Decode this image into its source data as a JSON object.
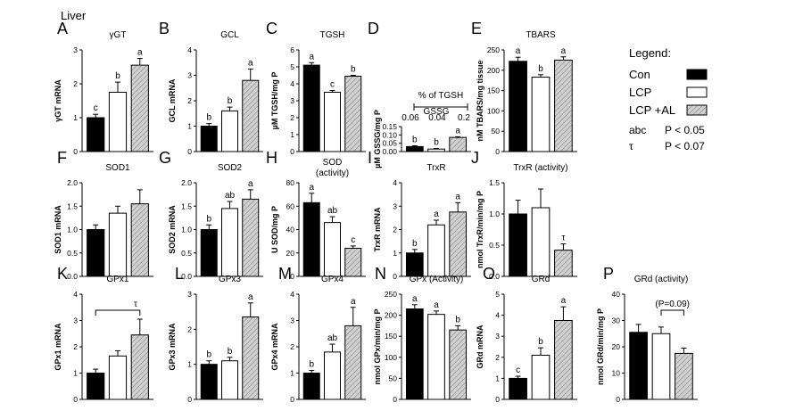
{
  "figure_title": "Liver",
  "colors": {
    "Con": "#000000",
    "LCP": "#ffffff",
    "LCP +AL": "#d0d0d0"
  },
  "legend": {
    "title": "Legend:",
    "entries": [
      "Con",
      "LCP",
      "LCP +AL"
    ],
    "sig": [
      {
        "symbol": "abc",
        "text": "P < 0.05"
      },
      {
        "symbol": "τ",
        "text": "P < 0.07"
      }
    ]
  },
  "chart_data": [
    {
      "id": "A",
      "type": "bar",
      "title": "γGT",
      "ylabel": "γGT mRNA",
      "series": [
        "Con",
        "LCP",
        "LCP +AL"
      ],
      "values": [
        1.0,
        1.75,
        2.55
      ],
      "errors": [
        0.1,
        0.3,
        0.2
      ],
      "ylim": [
        0,
        3
      ],
      "yticks": [
        "0",
        "1",
        "2",
        "3"
      ],
      "labels": [
        "c",
        "b",
        "a"
      ]
    },
    {
      "id": "B",
      "type": "bar",
      "title": "GCL",
      "ylabel": "GCL mRNA",
      "series": [
        "Con",
        "LCP",
        "LCP +AL"
      ],
      "values": [
        1.0,
        1.6,
        2.8
      ],
      "errors": [
        0.1,
        0.15,
        0.45
      ],
      "ylim": [
        0,
        4
      ],
      "yticks": [
        "0",
        "1",
        "2",
        "3",
        "4"
      ],
      "labels": [
        "b",
        "b",
        "a"
      ]
    },
    {
      "id": "C",
      "type": "bar",
      "title": "TGSH",
      "ylabel": "µM TGSH/mg P",
      "series": [
        "Con",
        "LCP",
        "LCP +AL"
      ],
      "values": [
        5.1,
        3.5,
        4.45
      ],
      "errors": [
        0.15,
        0.1,
        0.05
      ],
      "ylim": [
        0,
        6
      ],
      "yticks": [
        "0",
        "1",
        "2",
        "3",
        "4",
        "5",
        "6"
      ],
      "labels": [
        "a",
        "c",
        "b"
      ]
    },
    {
      "id": "D",
      "type": "bar",
      "title": "GSSG",
      "ylabel": "µM GSSG/mg P",
      "series": [
        "Con",
        "LCP",
        "LCP +AL"
      ],
      "values": [
        0.03,
        0.015,
        0.085
      ],
      "errors": [
        0.005,
        0.004,
        0.004
      ],
      "ylim": [
        0,
        0.15
      ],
      "yticks": [
        "0.00",
        "0.05",
        "0.10",
        "0.15"
      ],
      "labels": [
        "b",
        "b",
        "a"
      ],
      "inset": {
        "title": "% of TGSH",
        "values": [
          "0.06",
          "0.04",
          "0.2"
        ]
      }
    },
    {
      "id": "E",
      "type": "bar",
      "title": "TBARS",
      "ylabel": "nM TBARS/mg tissue",
      "series": [
        "Con",
        "LCP",
        "LCP +AL"
      ],
      "values": [
        222,
        183,
        225
      ],
      "errors": [
        10,
        6,
        8
      ],
      "ylim": [
        0,
        250
      ],
      "yticks": [
        "0",
        "50",
        "100",
        "150",
        "200",
        "250"
      ],
      "labels": [
        "a",
        "b",
        "a"
      ]
    },
    {
      "id": "F",
      "type": "bar",
      "title": "SOD1",
      "ylabel": "SOD1 mRNA",
      "series": [
        "Con",
        "LCP",
        "LCP +AL"
      ],
      "values": [
        1.0,
        1.35,
        1.55
      ],
      "errors": [
        0.1,
        0.15,
        0.3
      ],
      "ylim": [
        0,
        2.0
      ],
      "yticks": [
        "0.0",
        "0.5",
        "1.0",
        "1.5",
        "2.0"
      ],
      "labels": [
        "",
        "",
        ""
      ]
    },
    {
      "id": "G",
      "type": "bar",
      "title": "SOD2",
      "ylabel": "SOD2 mRNA",
      "series": [
        "Con",
        "LCP",
        "LCP +AL"
      ],
      "values": [
        1.0,
        1.45,
        1.65
      ],
      "errors": [
        0.1,
        0.15,
        0.2
      ],
      "ylim": [
        0,
        2.0
      ],
      "yticks": [
        "0.0",
        "0.5",
        "1.0",
        "1.5",
        "2.0"
      ],
      "labels": [
        "b",
        "ab",
        "a"
      ]
    },
    {
      "id": "H",
      "type": "bar",
      "title": "SOD",
      "subtitle": "(activity)",
      "ylabel": "U SOD/mg P",
      "series": [
        "Con",
        "LCP",
        "LCP +AL"
      ],
      "values": [
        63,
        46,
        24
      ],
      "errors": [
        8,
        5,
        2
      ],
      "ylim": [
        0,
        80
      ],
      "yticks": [
        "0",
        "20",
        "40",
        "60",
        "80"
      ],
      "labels": [
        "a",
        "ab",
        "c"
      ]
    },
    {
      "id": "I",
      "type": "bar",
      "title": "TrxR",
      "ylabel": "TrxR mRNA",
      "series": [
        "Con",
        "LCP",
        "LCP +AL"
      ],
      "values": [
        1.0,
        2.2,
        2.75
      ],
      "errors": [
        0.15,
        0.2,
        0.4
      ],
      "ylim": [
        0,
        4
      ],
      "yticks": [
        "0",
        "1",
        "2",
        "3",
        "4"
      ],
      "labels": [
        "b",
        "a",
        "a"
      ]
    },
    {
      "id": "J",
      "type": "bar",
      "title": "TrxR (activity)",
      "ylabel": "nmol TrxR/min/mg P",
      "series": [
        "Con",
        "LCP",
        "LCP +AL"
      ],
      "values": [
        1.0,
        1.1,
        0.42
      ],
      "errors": [
        0.22,
        0.3,
        0.1
      ],
      "ylim": [
        0,
        1.5
      ],
      "yticks": [
        "0.0",
        "0.5",
        "1.0",
        "1.5"
      ],
      "labels": [
        "",
        "",
        "τ"
      ]
    },
    {
      "id": "K",
      "type": "bar",
      "title": "GPx1",
      "ylabel": "GPx1 mRNA",
      "series": [
        "Con",
        "LCP",
        "LCP +AL"
      ],
      "values": [
        1.0,
        1.65,
        2.45
      ],
      "errors": [
        0.15,
        0.2,
        0.6
      ],
      "ylim": [
        0,
        4
      ],
      "yticks": [
        "0",
        "1",
        "2",
        "3",
        "4"
      ],
      "labels": [
        "",
        "",
        ""
      ],
      "bracket": {
        "from": 0,
        "to": 2,
        "label": "τ"
      }
    },
    {
      "id": "L",
      "type": "bar",
      "title": "GPx3",
      "ylabel": "GPx3 mRNA",
      "series": [
        "Con",
        "LCP",
        "LCP +AL"
      ],
      "values": [
        1.0,
        1.1,
        2.35
      ],
      "errors": [
        0.1,
        0.1,
        0.4
      ],
      "ylim": [
        0,
        3
      ],
      "yticks": [
        "0",
        "1",
        "2",
        "3"
      ],
      "labels": [
        "b",
        "b",
        "a"
      ]
    },
    {
      "id": "M",
      "type": "bar",
      "title": "GPx4",
      "ylabel": "GPx4 mRNA",
      "series": [
        "Con",
        "LCP",
        "LCP +AL"
      ],
      "values": [
        1.0,
        1.8,
        2.8
      ],
      "errors": [
        0.1,
        0.3,
        0.7
      ],
      "ylim": [
        0,
        4
      ],
      "yticks": [
        "0",
        "1",
        "2",
        "3",
        "4"
      ],
      "labels": [
        "b",
        "ab",
        "a"
      ]
    },
    {
      "id": "N",
      "type": "bar",
      "title": "GPx (Activity)",
      "ylabel": "nmol GPx/min/mg P",
      "series": [
        "Con",
        "LCP",
        "LCP +AL"
      ],
      "values": [
        215,
        202,
        165
      ],
      "errors": [
        10,
        8,
        10
      ],
      "ylim": [
        0,
        250
      ],
      "yticks": [
        "0",
        "50",
        "100",
        "150",
        "200",
        "250"
      ],
      "labels": [
        "a",
        "a",
        "b"
      ]
    },
    {
      "id": "O",
      "type": "bar",
      "title": "GRd",
      "ylabel": "GRd mRNA",
      "series": [
        "Con",
        "LCP",
        "LCP +AL"
      ],
      "values": [
        1.0,
        2.1,
        3.75
      ],
      "errors": [
        0.1,
        0.35,
        0.65
      ],
      "ylim": [
        0,
        5
      ],
      "yticks": [
        "0",
        "1",
        "2",
        "3",
        "4",
        "5"
      ],
      "labels": [
        "c",
        "b",
        "a"
      ]
    },
    {
      "id": "P",
      "type": "bar",
      "title": "GRd (activity)",
      "ylabel": "nmol GRd/min/mg P",
      "series": [
        "Con",
        "LCP",
        "LCP +AL"
      ],
      "values": [
        25.5,
        25.0,
        17.5
      ],
      "errors": [
        3,
        2.5,
        2
      ],
      "ylim": [
        0,
        40
      ],
      "yticks": [
        "0",
        "10",
        "20",
        "30",
        "40"
      ],
      "labels": [
        "",
        "",
        ""
      ],
      "bracket": {
        "from": 1,
        "to": 2,
        "label": "(P=0.09)"
      }
    }
  ]
}
